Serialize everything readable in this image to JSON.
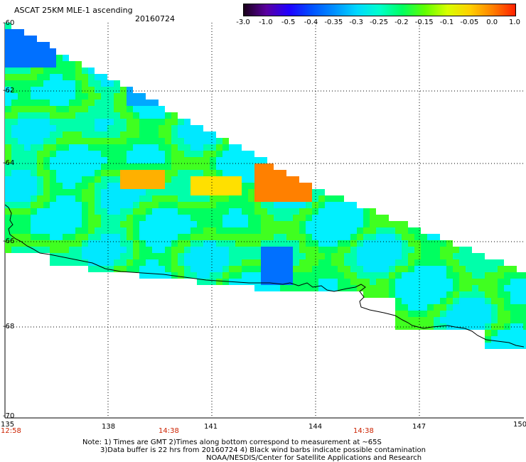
{
  "header": {
    "title": "ASCAT 25KM MLE-1 ascending",
    "date": "20160724"
  },
  "colorbar": {
    "labels": [
      "-3.0",
      "-1.0",
      "-0.5",
      "-0.4",
      "-0.35",
      "-0.3",
      "-0.25",
      "-0.2",
      "-0.15",
      "-0.1",
      "-0.05",
      "0.0",
      "1.0"
    ],
    "colors": [
      "#1a001a",
      "#5a00a0",
      "#2000ff",
      "#0050ff",
      "#0090ff",
      "#00d8ff",
      "#00ffcc",
      "#00ff60",
      "#60ff00",
      "#d8ff00",
      "#ffd000",
      "#ff8000",
      "#ff2000"
    ]
  },
  "map": {
    "lat_labels": [
      "-60",
      "-62",
      "-64",
      "-66",
      "-68",
      "-70"
    ],
    "lon_labels": [
      "135",
      "138",
      "141",
      "144",
      "147",
      "150"
    ],
    "time_labels": [
      "12:58",
      "14:38",
      "14:38"
    ]
  },
  "footer": {
    "note1": "Note: 1) Times are GMT 2)Times along bottom correspond to measurement at ~65S",
    "note2": "3)Data buffer is 22 hrs from 20160724 4) Black wind barbs indicate possible contamination",
    "note3": "NOAA/NESDIS/Center for Satellite Applications and Research"
  }
}
